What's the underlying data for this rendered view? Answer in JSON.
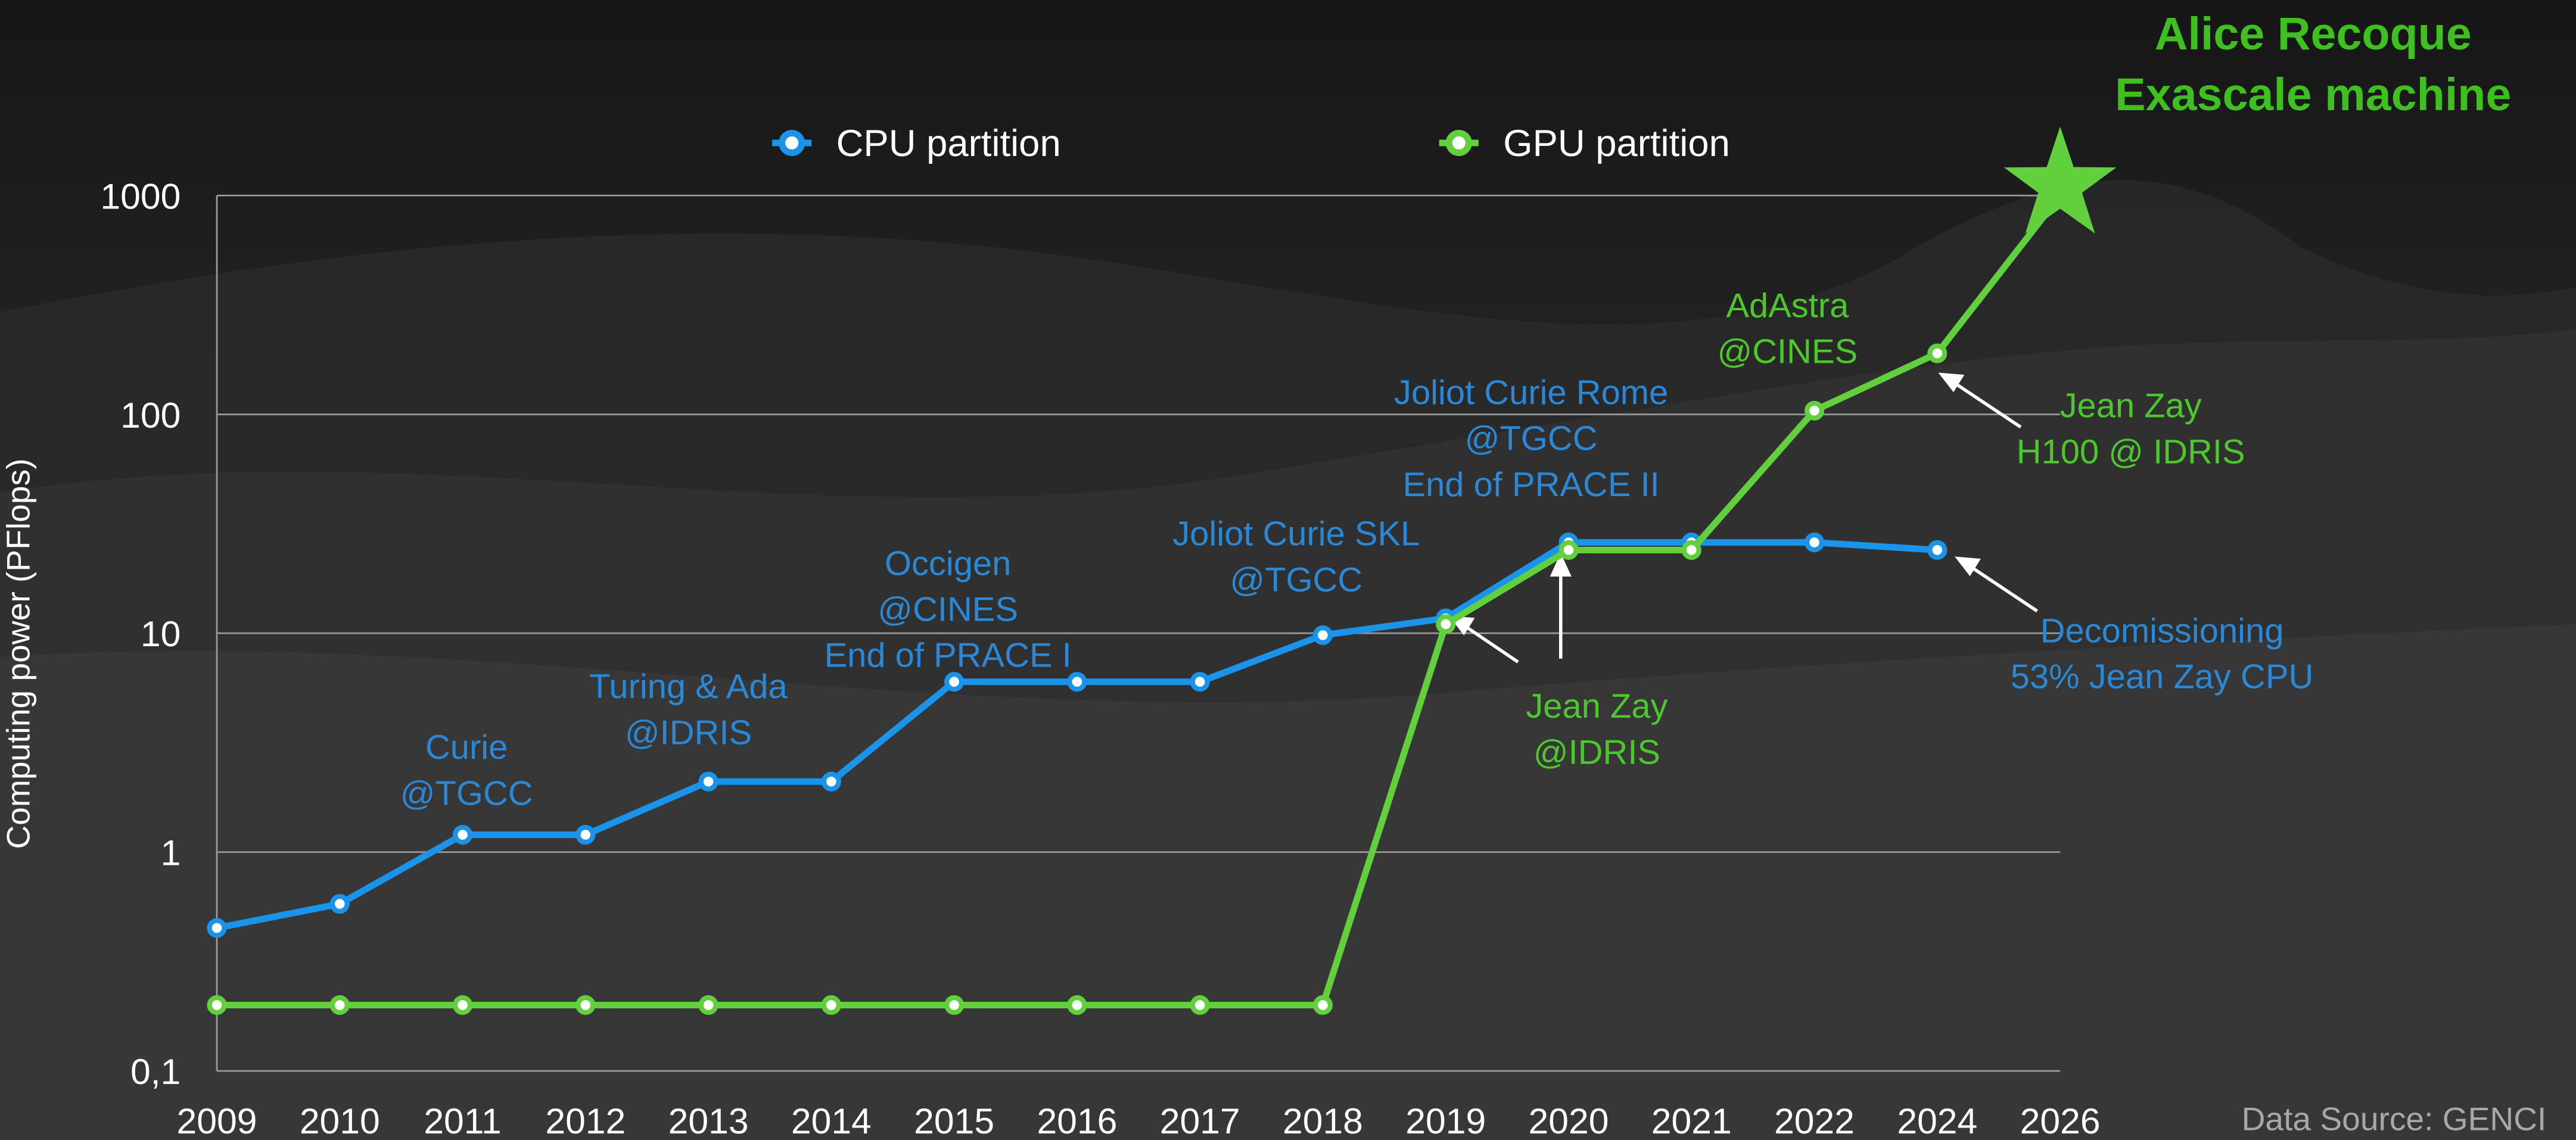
{
  "chart_data": {
    "type": "line",
    "title": [
      "Alice Recoque",
      "Exascale machine"
    ],
    "y_label": "Computing power (PFlops)",
    "source": "Data Source: GENCI",
    "log_y": true,
    "grid": true,
    "legend": "top",
    "categories": [
      "2009",
      "2010",
      "2011",
      "2012",
      "2013",
      "2014",
      "2015",
      "2016",
      "2017",
      "2018",
      "2019",
      "2020",
      "2021",
      "2022",
      "2024",
      "2026"
    ],
    "series": [
      {
        "name": "CPU partition",
        "color": "#1a93ea",
        "values": [
          0.45,
          0.58,
          1.2,
          1.2,
          2.1,
          2.1,
          6,
          6,
          6,
          9.8,
          11.7,
          26,
          26,
          26,
          24,
          null
        ]
      },
      {
        "name": "GPU partition",
        "color": "#62cf3c",
        "values": [
          0.2,
          0.2,
          0.2,
          0.2,
          0.2,
          0.2,
          0.2,
          0.2,
          0.2,
          0.2,
          11,
          24,
          24,
          104,
          190,
          1000
        ]
      }
    ],
    "ylim": [
      0.1,
      1000
    ],
    "yticks": [
      {
        "value": 0.1,
        "label": "0,1"
      },
      1,
      10,
      100,
      1000
    ],
    "annotations": [
      {
        "lines": [
          "Curie",
          "@TGCC"
        ],
        "color": "#2a88d6"
      },
      {
        "lines": [
          "Turing & Ada",
          "@IDRIS"
        ],
        "color": "#2a88d6"
      },
      {
        "lines": [
          "Occigen",
          "@CINES",
          "End of PRACE I"
        ],
        "color": "#2a88d6"
      },
      {
        "lines": [
          "Joliot Curie SKL",
          "@TGCC"
        ],
        "color": "#2a88d6"
      },
      {
        "lines": [
          "Joliot Curie Rome",
          "@TGCC",
          "End of PRACE II"
        ],
        "color": "#2a88d6"
      },
      {
        "lines": [
          "AdAstra",
          "@CINES"
        ],
        "color": "#4cc82c"
      },
      {
        "lines": [
          "Jean Zay",
          "H100 @ IDRIS"
        ],
        "color": "#4cc82c"
      },
      {
        "lines": [
          "Jean Zay",
          "@IDRIS"
        ],
        "color": "#4cc82c"
      },
      {
        "lines": [
          "Decomissioning",
          "53% Jean Zay CPU"
        ],
        "color": "#2a88d6"
      }
    ]
  }
}
